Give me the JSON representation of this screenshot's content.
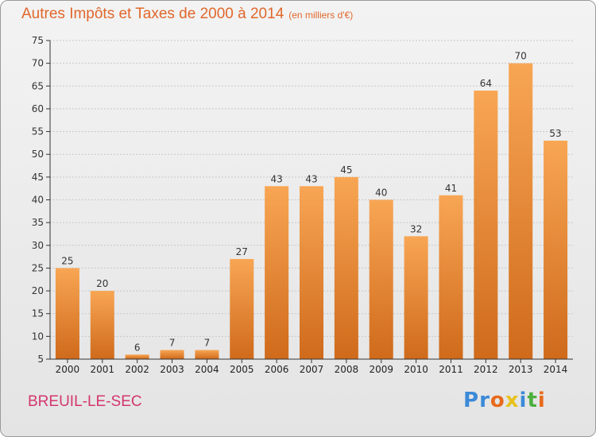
{
  "header": {
    "title": "Autres Impôts et Taxes de 2000 à 2014",
    "unit": "(en milliers d'€)"
  },
  "footer": {
    "commune": "BREUIL-LE-SEC",
    "logo": [
      "P",
      "r",
      "o",
      "x",
      "i",
      "t",
      "i"
    ]
  },
  "colors": {
    "title": "#e0672c",
    "commune": "#d3366e",
    "bar_top": "#f8a654",
    "bar_bottom": "#cf6a1b",
    "grid": "#c7c7c7",
    "logo": [
      "#3b8ad8",
      "#3b8ad8",
      "#e86a1c",
      "#e8c21c",
      "#3b8ad8",
      "#4caf3e",
      "#e86a1c"
    ]
  },
  "chart_data": {
    "type": "bar",
    "title": "Autres Impôts et Taxes de 2000 à 2014",
    "ylabel": "",
    "xlabel": "",
    "categories": [
      "2000",
      "2001",
      "2002",
      "2003",
      "2004",
      "2005",
      "2006",
      "2007",
      "2008",
      "2009",
      "2010",
      "2011",
      "2012",
      "2013",
      "2014"
    ],
    "values": [
      25,
      20,
      6,
      7,
      7,
      27,
      43,
      43,
      45,
      40,
      32,
      41,
      64,
      70,
      53
    ],
    "ylim": [
      5,
      75
    ],
    "yticks": [
      5,
      10,
      15,
      20,
      25,
      30,
      35,
      40,
      45,
      50,
      55,
      60,
      65,
      70,
      75
    ],
    "grid": true,
    "legend": "none"
  }
}
